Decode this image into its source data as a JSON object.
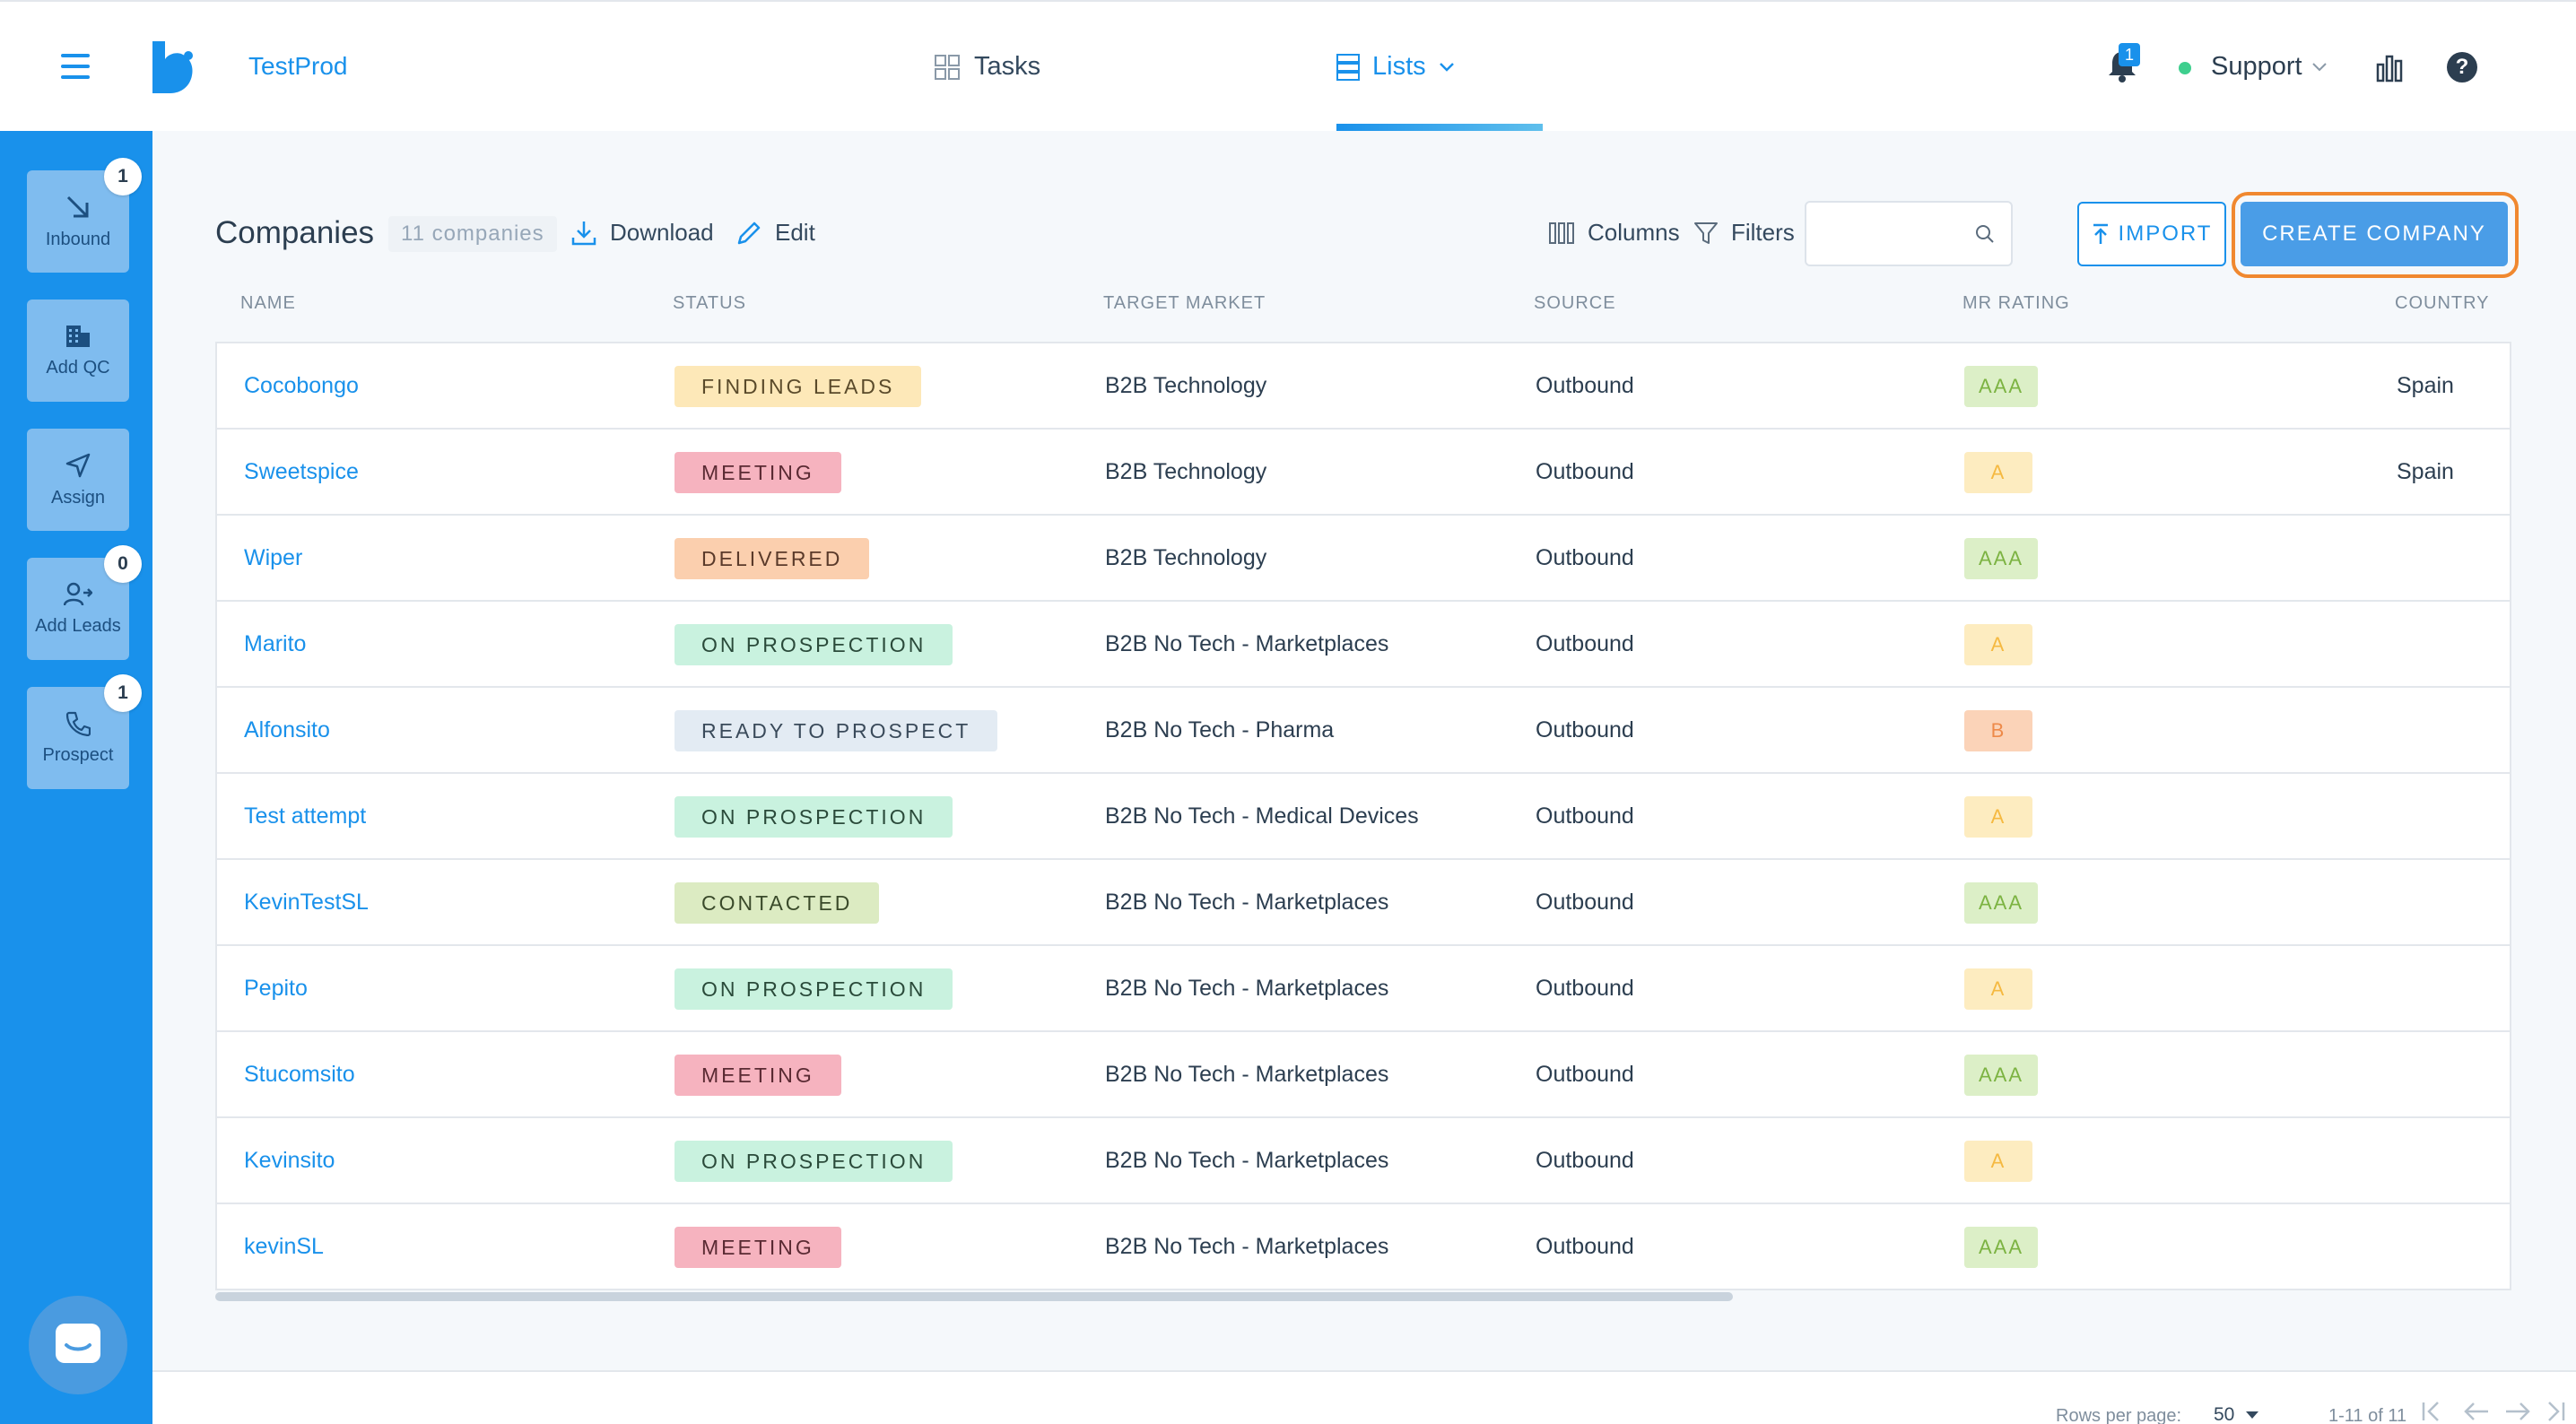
{
  "header": {
    "app_name": "TestProd",
    "nav": {
      "tasks": "Tasks",
      "lists": "Lists"
    },
    "notifications_count": "1",
    "account": "Support"
  },
  "sidebar": {
    "items": [
      {
        "label": "Inbound",
        "badge": "1",
        "icon": "arrow-down-right-icon"
      },
      {
        "label": "Add QC",
        "badge": "",
        "icon": "building-icon"
      },
      {
        "label": "Assign",
        "badge": "",
        "icon": "paper-plane-icon"
      },
      {
        "label": "Add Leads",
        "badge": "0",
        "icon": "user-plus-icon"
      },
      {
        "label": "Prospect",
        "badge": "1",
        "icon": "phone-icon"
      }
    ]
  },
  "toolbar": {
    "title": "Companies",
    "count": "11 companies",
    "download": "Download",
    "edit": "Edit",
    "columns": "Columns",
    "filters": "Filters",
    "search_placeholder": "",
    "import": "IMPORT",
    "create": "CREATE COMPANY"
  },
  "table": {
    "headers": [
      "NAME",
      "STATUS",
      "TARGET MARKET",
      "SOURCE",
      "MR RATING",
      "COUNTRY"
    ],
    "rows": [
      {
        "name": "Cocobongo",
        "status": "FINDING LEADS",
        "market": "B2B Technology",
        "source": "Outbound",
        "rating": "AAA",
        "country": "Spain"
      },
      {
        "name": "Sweetspice",
        "status": "MEETING",
        "market": "B2B Technology",
        "source": "Outbound",
        "rating": "A",
        "country": "Spain"
      },
      {
        "name": "Wiper",
        "status": "DELIVERED",
        "market": "B2B Technology",
        "source": "Outbound",
        "rating": "AAA",
        "country": ""
      },
      {
        "name": "Marito",
        "status": "ON PROSPECTION",
        "market": "B2B No Tech - Marketplaces",
        "source": "Outbound",
        "rating": "A",
        "country": ""
      },
      {
        "name": "Alfonsito",
        "status": "READY TO PROSPECT",
        "market": "B2B No Tech - Pharma",
        "source": "Outbound",
        "rating": "B",
        "country": ""
      },
      {
        "name": "Test attempt",
        "status": "ON PROSPECTION",
        "market": "B2B No Tech - Medical Devices",
        "source": "Outbound",
        "rating": "A",
        "country": ""
      },
      {
        "name": "KevinTestSL",
        "status": "CONTACTED",
        "market": "B2B No Tech - Marketplaces",
        "source": "Outbound",
        "rating": "AAA",
        "country": ""
      },
      {
        "name": "Pepito",
        "status": "ON PROSPECTION",
        "market": "B2B No Tech - Marketplaces",
        "source": "Outbound",
        "rating": "A",
        "country": ""
      },
      {
        "name": "Stucomsito",
        "status": "MEETING",
        "market": "B2B No Tech - Marketplaces",
        "source": "Outbound",
        "rating": "AAA",
        "country": ""
      },
      {
        "name": "Kevinsito",
        "status": "ON PROSPECTION",
        "market": "B2B No Tech - Marketplaces",
        "source": "Outbound",
        "rating": "A",
        "country": ""
      },
      {
        "name": "kevinSL",
        "status": "MEETING",
        "market": "B2B No Tech - Marketplaces",
        "source": "Outbound",
        "rating": "AAA",
        "country": ""
      }
    ]
  },
  "status_colors": {
    "FINDING LEADS": {
      "bg": "#fde8b8",
      "fg": "#5a4a2a"
    },
    "MEETING": {
      "bg": "#f6b3bf",
      "fg": "#5a2a33"
    },
    "DELIVERED": {
      "bg": "#fbcfae",
      "fg": "#5a3a2a"
    },
    "ON PROSPECTION": {
      "bg": "#c9f2df",
      "fg": "#2a4a3a"
    },
    "READY TO PROSPECT": {
      "bg": "#e3ebf3",
      "fg": "#3a4a5a"
    },
    "CONTACTED": {
      "bg": "#dcebc2",
      "fg": "#3a4a2a"
    }
  },
  "rating_colors": {
    "AAA": {
      "bg": "#dcefc7",
      "fg": "#7cb342"
    },
    "A": {
      "bg": "#fdecc0",
      "fg": "#f5b941"
    },
    "B": {
      "bg": "#fbd3b8",
      "fg": "#ee8a4a"
    }
  },
  "footer": {
    "rows_per_page_label": "Rows per page:",
    "rows_per_page": "50",
    "range": "1-11 of 11"
  },
  "colors": {
    "accent": "#1991eb",
    "highlight": "#f0882f"
  }
}
